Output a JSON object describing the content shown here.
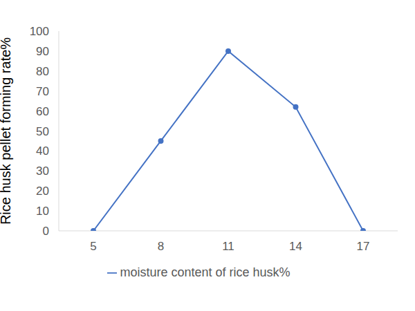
{
  "chart_data": {
    "type": "line",
    "categories": [
      5,
      8,
      11,
      14,
      17
    ],
    "series": [
      {
        "name": "moisture content of rice husk%",
        "color": "#4472c4",
        "values": [
          0,
          45,
          90,
          62,
          0
        ],
        "marker": "circle"
      }
    ],
    "y_label": "Rice husk pellet forming rate%",
    "ylim": [
      0,
      100
    ],
    "yticks": [
      0,
      10,
      20,
      30,
      40,
      50,
      60,
      70,
      80,
      90,
      100
    ],
    "grid": false,
    "legend": "bottom"
  }
}
